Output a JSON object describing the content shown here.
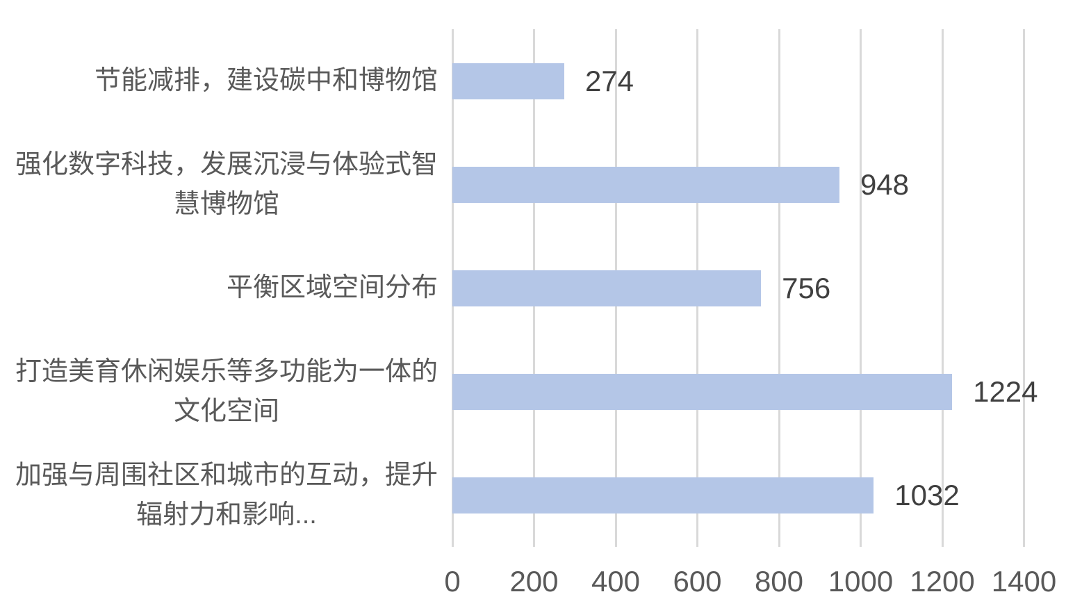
{
  "chart_data": {
    "type": "bar",
    "orientation": "horizontal",
    "title": "",
    "xlabel": "",
    "ylabel": "",
    "xlim": [
      0,
      1400
    ],
    "x_ticks": [
      0,
      200,
      400,
      600,
      800,
      1000,
      1200,
      1400
    ],
    "grid": true,
    "legend_position": "none",
    "categories": [
      "节能减排，建设碳中和博物馆",
      "强化数字科技，发展沉浸与体验式智慧博物馆",
      "平衡区域空间分布",
      "打造美育休闲娱乐等多功能为一体的文化空间",
      "加强与周围社区和城市的互动，提升辐射力和影响..."
    ],
    "category_lines": [
      [
        "节能减排，建设碳中和博物馆"
      ],
      [
        "强化数字科技，发展沉浸与体验式智",
        "慧博物馆"
      ],
      [
        "平衡区域空间分布"
      ],
      [
        "打造美育休闲娱乐等多功能为一体的",
        "文化空间"
      ],
      [
        "加强与周围社区和城市的互动，提升",
        "辐射力和影响..."
      ]
    ],
    "values": [
      274,
      948,
      756,
      1224,
      1032
    ],
    "data_labels": [
      "274",
      "948",
      "756",
      "1224",
      "1032"
    ],
    "colors": {
      "bar": "#B4C6E7",
      "gridline": "#D9D9D9",
      "category_text": "#595959",
      "tick_text": "#595959",
      "value_text": "#404040",
      "background": "#FFFFFF"
    }
  }
}
